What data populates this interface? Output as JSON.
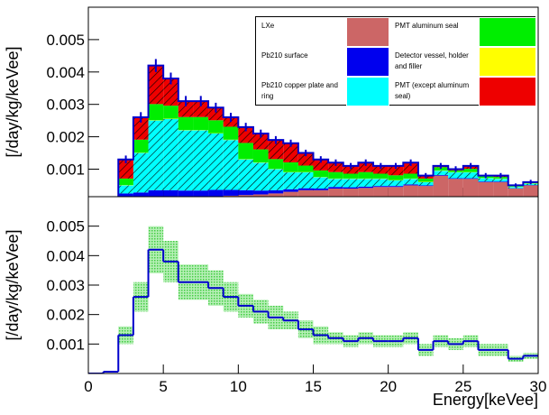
{
  "chart_data": [
    {
      "type": "stacked_histogram",
      "ylabel": "[/day/kg/keVee]",
      "bins": [
        0,
        1,
        2,
        3,
        4,
        5,
        6,
        7,
        8,
        9,
        10,
        11,
        12,
        13,
        14,
        15,
        16,
        17,
        18,
        19,
        20,
        21,
        22,
        23,
        24,
        25,
        26,
        27,
        28,
        29,
        30
      ],
      "xlim": [
        0,
        30
      ],
      "xticks": [
        0,
        5,
        10,
        15,
        20,
        25,
        30
      ],
      "ylim": [
        0.00015,
        0.006
      ],
      "yticks": [
        0.001,
        0.002,
        0.003,
        0.004,
        0.005
      ],
      "total_color": "#0000cc",
      "series": [
        {
          "name": "LXe",
          "color": "#cc6666",
          "hatch": false,
          "values": [
            0,
            0,
            5e-05,
            8e-05,
            0.0001,
            0.0001,
            0.00012,
            0.00014,
            0.00016,
            0.00018,
            0.0002,
            0.00022,
            0.00025,
            0.0003,
            0.00035,
            0.00035,
            0.0004,
            0.0004,
            0.00042,
            0.00045,
            0.00045,
            0.0005,
            0.00048,
            0.0008,
            0.0007,
            0.0007,
            0.0006,
            0.0006,
            0.0004,
            0.0005
          ]
        },
        {
          "name": "Pb210 surface",
          "color": "#0000ee",
          "hatch": false,
          "values": [
            0,
            3e-05,
            0.0002,
            0.0002,
            0.00025,
            0.00025,
            0.00022,
            0.0002,
            0.0002,
            0.00018,
            0.00015,
            0.00012,
            0.0001,
            8e-05,
            6e-05,
            5e-05,
            5e-05,
            4e-05,
            4e-05,
            3e-05,
            3e-05,
            3e-05,
            2e-05,
            2e-05,
            2e-05,
            2e-05,
            2e-05,
            2e-05,
            1e-05,
            1e-05
          ]
        },
        {
          "name": "Pb210 copper plate and ring",
          "color": "#00ffff",
          "hatch": true,
          "values": [
            0,
            0,
            0.00025,
            0.00122,
            0.00215,
            0.0022,
            0.00186,
            0.00186,
            0.00174,
            0.00154,
            0.00095,
            0.00086,
            0.00065,
            0.00052,
            0.00049,
            0.00035,
            0.00025,
            0.00026,
            0.00024,
            0.00022,
            0.00017,
            0.00017,
            0.0001,
            0.00013,
            0.00018,
            0.00018,
            0.0001,
            8e-05,
            4e-05,
            4e-05
          ]
        },
        {
          "name": "Detector vessel, holder and filler",
          "color": "#ffff00",
          "hatch": false,
          "values": [
            0,
            0,
            1e-05,
            1e-05,
            1e-05,
            1e-05,
            1e-05,
            1e-05,
            1e-05,
            1e-05,
            1e-05,
            1e-05,
            1e-05,
            1e-05,
            1e-05,
            1e-05,
            1e-05,
            1e-05,
            1e-05,
            1e-05,
            1e-05,
            1e-05,
            1e-05,
            1e-05,
            1e-05,
            1e-05,
            1e-05,
            1e-05,
            1e-05,
            1e-05
          ]
        },
        {
          "name": "PMT aluminum seal",
          "color": "#00ee00",
          "hatch": false,
          "values": [
            0,
            0,
            0.0002,
            0.0004,
            0.0005,
            0.0004,
            0.0004,
            0.0004,
            0.0004,
            0.0004,
            0.0005,
            0.0004,
            0.0003,
            0.0003,
            0.0002,
            0.0002,
            0.0002,
            0.00015,
            0.0002,
            0.00015,
            0.00015,
            0.00015,
            0.0001,
            0.0001,
            5e-05,
            0.0001,
            5e-05,
            5e-05,
            4e-05,
            4e-05
          ]
        },
        {
          "name": "PMT (except aluminum seal)",
          "color": "#ee0000",
          "hatch": true,
          "values": [
            0,
            3e-05,
            0.00059,
            0.00069,
            0.00119,
            0.00084,
            0.00049,
            0.00049,
            0.00039,
            0.00029,
            0.00049,
            0.00049,
            0.00059,
            0.00059,
            0.00039,
            0.00034,
            0.00029,
            0.00024,
            0.00029,
            0.00024,
            0.00029,
            0.00034,
            9e-05,
            4e-05,
            4e-05,
            9e-05,
            2e-05,
            4e-05,
            0,
            0
          ]
        }
      ],
      "errors": [
        0,
        0,
        0.00012,
        0.00016,
        0.0002,
        0.00018,
        0.00016,
        0.00016,
        0.00015,
        0.00014,
        0.00013,
        0.00012,
        0.00012,
        0.00011,
        0.0001,
        0.0001,
        0.0001,
        9e-05,
        0.0001,
        9e-05,
        9e-05,
        0.0001,
        8e-05,
        9e-05,
        9e-05,
        9e-05,
        8e-05,
        8e-05,
        6e-05,
        7e-05
      ]
    },
    {
      "type": "band_histogram",
      "ylabel": "[/day/kg/keVee]",
      "xlabel": "Energy[keVee]",
      "bins": [
        0,
        1,
        2,
        3,
        4,
        5,
        6,
        7,
        8,
        9,
        10,
        11,
        12,
        13,
        14,
        15,
        16,
        17,
        18,
        19,
        20,
        21,
        22,
        23,
        24,
        25,
        26,
        27,
        28,
        29,
        30
      ],
      "xlim": [
        0,
        30
      ],
      "xticks": [
        0,
        5,
        10,
        15,
        20,
        25,
        30
      ],
      "ylim": [
        0,
        0.006
      ],
      "yticks": [
        0.001,
        0.002,
        0.003,
        0.004,
        0.005
      ],
      "color": "#0000cc",
      "band_color": "#7ee07e",
      "values": [
        0,
        6e-05,
        0.0013,
        0.0026,
        0.0042,
        0.0038,
        0.0031,
        0.0031,
        0.0029,
        0.0026,
        0.0023,
        0.0021,
        0.0019,
        0.0018,
        0.0015,
        0.0013,
        0.0012,
        0.0011,
        0.0012,
        0.0011,
        0.0011,
        0.0012,
        0.0008,
        0.0011,
        0.001,
        0.0011,
        0.0008,
        0.0008,
        0.0005,
        0.0006
      ],
      "errors": [
        0,
        1e-05,
        0.0003,
        0.0005,
        0.0008,
        0.0007,
        0.0006,
        0.0006,
        0.0006,
        0.0005,
        0.0004,
        0.0004,
        0.0004,
        0.0003,
        0.0003,
        0.0003,
        0.0002,
        0.0002,
        0.0002,
        0.0002,
        0.0002,
        0.0002,
        0.0002,
        0.0002,
        0.0002,
        0.0002,
        0.0002,
        0.0002,
        0.0001,
        0.0001
      ]
    }
  ]
}
